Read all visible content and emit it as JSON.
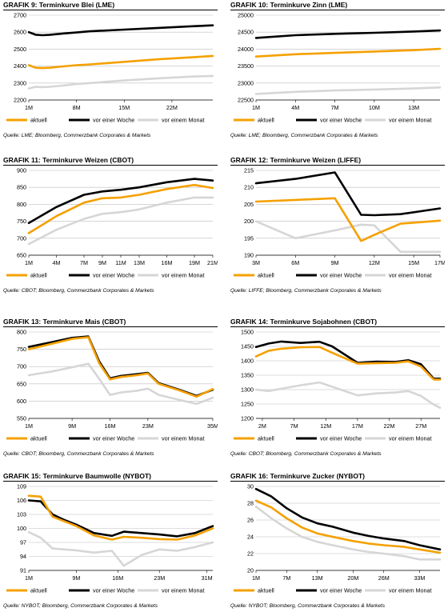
{
  "legend_labels": {
    "a": "aktuell",
    "w": "vor einer Woche",
    "m": "vor einem Monat"
  },
  "colors": {
    "aktuell": "#f5a000",
    "vor einer Woche": "#000000",
    "vor einem Monat": "#d6d6d6",
    "grid": "#bdbdbd"
  },
  "charts": [
    {
      "title": "GRAFIK 9: Terminkurve Blei (LME)",
      "source": "Quelle: LME; Bloomberg, Commerzbank Corporates & Markets"
    },
    {
      "title": "GRAFIK 10: Terminkurve Zinn (LME)",
      "source": "Quelle: LME; Bloomberg, Commerzbank Corporates & Markets"
    },
    {
      "title": "GRAFIK 11: Terminkurve Weizen (CBOT)",
      "source": "Quelle: CBOT; Bloomberg, Commerzbank Corporates & Markets"
    },
    {
      "title": "GRAFIK 12: Terminkurve Weizen (LIFFE)",
      "source": "Quelle: LIFFE; Bloomberg, Commerzbank Corporates & Markets"
    },
    {
      "title": "GRAFIK 13:  Terminkurve Mais (CBOT)",
      "source": "Quelle: CBOT; Bloomberg, Commerzbank Corporates & Markets"
    },
    {
      "title": "GRAFIK 14: Terminkurve Sojabohnen (CBOT)",
      "source": "Quelle: CBOT; Bloomberg, Commerzbank Corporates & Markets"
    },
    {
      "title": "GRAFIK 15: Terminkurve Baumwolle (NYBOT)",
      "source": "Quelle: NYBOT; Bloomberg, Commerzbank Corporates & Markets"
    },
    {
      "title": "GRAFIK 16: Terminkurve Zucker (NYBOT)",
      "source": "Quelle: NYBOT; Bloomberg, Commerzbank Corporates & Markets"
    }
  ],
  "chart_data": [
    {
      "type": "line",
      "xlim": [
        1,
        28
      ],
      "ylim": [
        2200,
        2700
      ],
      "yticks": [
        2200,
        2300,
        2400,
        2500,
        2600,
        2700
      ],
      "xticks": [
        1,
        8,
        15,
        22
      ],
      "xtick_labels": [
        "1M",
        "8M",
        "15M",
        "22M"
      ],
      "series": [
        {
          "name": "aktuell",
          "x": [
            1,
            2,
            3,
            4,
            6,
            8,
            10,
            15,
            20,
            25,
            28
          ],
          "y": [
            2405,
            2390,
            2388,
            2390,
            2398,
            2405,
            2410,
            2425,
            2440,
            2452,
            2460
          ]
        },
        {
          "name": "vor einer Woche",
          "x": [
            1,
            2,
            3,
            4,
            6,
            8,
            10,
            15,
            20,
            25,
            28
          ],
          "y": [
            2600,
            2585,
            2582,
            2584,
            2592,
            2598,
            2605,
            2615,
            2625,
            2635,
            2640
          ]
        },
        {
          "name": "vor einem Monat",
          "x": [
            1,
            2,
            3,
            4,
            6,
            8,
            10,
            15,
            20,
            25,
            28
          ],
          "y": [
            2268,
            2278,
            2276,
            2278,
            2285,
            2295,
            2300,
            2315,
            2328,
            2338,
            2342
          ]
        }
      ]
    },
    {
      "type": "line",
      "xlim": [
        1,
        15
      ],
      "ylim": [
        22500,
        25000
      ],
      "yticks": [
        22500,
        23000,
        23500,
        24000,
        24500,
        25000
      ],
      "xticks": [
        1,
        4,
        7,
        10,
        13
      ],
      "xtick_labels": [
        "1M",
        "4M",
        "7M",
        "10M",
        "13M"
      ],
      "series": [
        {
          "name": "aktuell",
          "x": [
            1,
            4,
            7,
            10,
            13,
            15
          ],
          "y": [
            23780,
            23850,
            23890,
            23930,
            23970,
            24010
          ]
        },
        {
          "name": "vor einer Woche",
          "x": [
            1,
            4,
            7,
            10,
            13,
            15
          ],
          "y": [
            24330,
            24410,
            24450,
            24480,
            24520,
            24550
          ]
        },
        {
          "name": "vor einem Monat",
          "x": [
            1,
            4,
            7,
            10,
            13,
            15
          ],
          "y": [
            22680,
            22740,
            22780,
            22810,
            22840,
            22870
          ]
        }
      ]
    },
    {
      "type": "line",
      "xlim": [
        1,
        21
      ],
      "ylim": [
        650,
        900
      ],
      "yticks": [
        650,
        700,
        750,
        800,
        850,
        900
      ],
      "xticks": [
        1,
        4,
        7,
        9,
        11,
        13,
        16,
        19,
        21
      ],
      "xtick_labels": [
        "1M",
        "4M",
        "7M",
        "9M",
        "11M",
        "13M",
        "16M",
        "19M",
        "21M"
      ],
      "series": [
        {
          "name": "aktuell",
          "x": [
            1,
            4,
            7,
            9,
            11,
            13,
            16,
            19,
            21
          ],
          "y": [
            715,
            765,
            805,
            818,
            820,
            828,
            845,
            857,
            848
          ]
        },
        {
          "name": "vor einer Woche",
          "x": [
            1,
            4,
            7,
            9,
            11,
            13,
            16,
            19,
            21
          ],
          "y": [
            745,
            792,
            828,
            838,
            843,
            850,
            865,
            875,
            870
          ]
        },
        {
          "name": "vor einem Monat",
          "x": [
            1,
            4,
            7,
            9,
            11,
            13,
            16,
            19,
            21
          ],
          "y": [
            683,
            725,
            757,
            772,
            777,
            785,
            805,
            820,
            820
          ]
        }
      ]
    },
    {
      "type": "line",
      "xlim": [
        3,
        17
      ],
      "ylim": [
        190,
        215
      ],
      "yticks": [
        190,
        195,
        200,
        205,
        210,
        215
      ],
      "xticks": [
        3,
        6,
        9,
        12,
        15,
        17
      ],
      "xtick_labels": [
        "3M",
        "6M",
        "9M",
        "12M",
        "15M",
        "17M"
      ],
      "series": [
        {
          "name": "aktuell",
          "x": [
            3,
            6,
            9,
            11,
            12,
            14,
            17
          ],
          "y": [
            205.8,
            206.3,
            206.8,
            194.2,
            196,
            199.3,
            200.2
          ]
        },
        {
          "name": "vor einer Woche",
          "x": [
            3,
            6,
            9,
            11,
            12,
            14,
            17
          ],
          "y": [
            211.2,
            212.5,
            214.4,
            201.9,
            201.8,
            202.1,
            203.8
          ]
        },
        {
          "name": "vor einem Monat",
          "x": [
            3,
            6,
            9,
            11,
            12,
            14,
            17
          ],
          "y": [
            200,
            195,
            197.3,
            199,
            198.8,
            191,
            191
          ]
        }
      ]
    },
    {
      "type": "line",
      "xlim": [
        1,
        35
      ],
      "ylim": [
        550,
        800
      ],
      "yticks": [
        550,
        600,
        650,
        700,
        750,
        800
      ],
      "xticks": [
        1,
        9,
        16,
        23,
        35
      ],
      "xtick_labels": [
        "1M",
        "9M",
        "16M",
        "23M",
        "35M"
      ],
      "series": [
        {
          "name": "aktuell",
          "x": [
            1,
            5,
            9,
            12,
            14,
            16,
            18,
            21,
            23,
            25,
            29,
            32,
            35
          ],
          "y": [
            750,
            765,
            780,
            785,
            710,
            663,
            670,
            675,
            680,
            650,
            630,
            613,
            635
          ]
        },
        {
          "name": "vor einer Woche",
          "x": [
            1,
            5,
            9,
            12,
            14,
            16,
            18,
            21,
            23,
            25,
            29,
            32,
            35
          ],
          "y": [
            757,
            770,
            783,
            787,
            715,
            666,
            673,
            678,
            682,
            652,
            632,
            615,
            633
          ]
        },
        {
          "name": "vor einem Monat",
          "x": [
            1,
            5,
            9,
            12,
            14,
            16,
            18,
            21,
            23,
            25,
            29,
            32,
            35
          ],
          "y": [
            675,
            685,
            698,
            708,
            665,
            618,
            625,
            630,
            636,
            618,
            603,
            592,
            610
          ]
        }
      ]
    },
    {
      "type": "line",
      "xlim": [
        1,
        30
      ],
      "ylim": [
        1200,
        1500
      ],
      "yticks": [
        1200,
        1250,
        1300,
        1350,
        1400,
        1450,
        1500
      ],
      "xticks": [
        2,
        7,
        12,
        17,
        22,
        27
      ],
      "xtick_labels": [
        "2M",
        "7M",
        "12M",
        "17M",
        "22M",
        "27M"
      ],
      "series": [
        {
          "name": "aktuell",
          "x": [
            1,
            3,
            5,
            8,
            11,
            13,
            17,
            20,
            23,
            25,
            27,
            29,
            30
          ],
          "y": [
            1415,
            1435,
            1442,
            1447,
            1448,
            1428,
            1390,
            1392,
            1393,
            1398,
            1380,
            1335,
            1335
          ]
        },
        {
          "name": "vor einer Woche",
          "x": [
            1,
            3,
            5,
            8,
            11,
            13,
            17,
            20,
            23,
            25,
            27,
            29,
            30
          ],
          "y": [
            1448,
            1460,
            1467,
            1462,
            1466,
            1450,
            1393,
            1397,
            1396,
            1402,
            1388,
            1338,
            1338
          ]
        },
        {
          "name": "vor einem Monat",
          "x": [
            1,
            3,
            5,
            8,
            11,
            13,
            17,
            20,
            23,
            25,
            27,
            29,
            30
          ],
          "y": [
            1300,
            1295,
            1303,
            1315,
            1325,
            1310,
            1280,
            1287,
            1290,
            1295,
            1278,
            1248,
            1237
          ]
        }
      ]
    },
    {
      "type": "line",
      "xlim": [
        1,
        32
      ],
      "ylim": [
        91,
        109
      ],
      "yticks": [
        91,
        94,
        97,
        100,
        103,
        106,
        109
      ],
      "xticks": [
        1,
        9,
        16,
        23,
        31
      ],
      "xtick_labels": [
        "1M",
        "9M",
        "16M",
        "23M",
        "31M"
      ],
      "series": [
        {
          "name": "aktuell",
          "x": [
            1,
            3,
            5,
            7,
            9,
            12,
            15,
            17,
            20,
            23,
            26,
            29,
            32
          ],
          "y": [
            107,
            106.8,
            102.5,
            101.5,
            100.5,
            98.5,
            97.6,
            98.2,
            98,
            97.7,
            97.6,
            98.5,
            100
          ]
        },
        {
          "name": "vor einer Woche",
          "x": [
            1,
            3,
            5,
            7,
            9,
            12,
            15,
            17,
            20,
            23,
            26,
            29,
            32
          ],
          "y": [
            106,
            105.8,
            103,
            101.8,
            100.8,
            99,
            98.4,
            99.3,
            99,
            98.7,
            98.3,
            99,
            100.5
          ]
        },
        {
          "name": "vor einem Monat",
          "x": [
            1,
            3,
            5,
            7,
            9,
            12,
            15,
            17,
            20,
            23,
            26,
            29,
            32
          ],
          "y": [
            99.2,
            98,
            95.7,
            95.5,
            95.3,
            94.8,
            95.2,
            92,
            94.3,
            95.5,
            95.2,
            96,
            97
          ]
        }
      ]
    },
    {
      "type": "line",
      "xlim": [
        1,
        37
      ],
      "ylim": [
        20,
        30
      ],
      "yticks": [
        20,
        22,
        24,
        26,
        28,
        30
      ],
      "xticks": [
        1,
        7,
        13,
        20,
        26,
        33
      ],
      "xtick_labels": [
        "1M",
        "7M",
        "13M",
        "20M",
        "26M",
        "33M"
      ],
      "series": [
        {
          "name": "aktuell",
          "x": [
            1,
            4,
            7,
            10,
            13,
            16,
            20,
            23,
            26,
            30,
            33,
            37
          ],
          "y": [
            28.3,
            27.5,
            26.2,
            25.1,
            24.4,
            24.0,
            23.5,
            23.2,
            23.0,
            22.8,
            22.5,
            22.1
          ]
        },
        {
          "name": "vor einer Woche",
          "x": [
            1,
            4,
            7,
            10,
            13,
            16,
            20,
            23,
            26,
            30,
            33,
            37
          ],
          "y": [
            29.7,
            28.8,
            27.4,
            26.3,
            25.6,
            25.2,
            24.5,
            24.1,
            23.8,
            23.5,
            23.0,
            22.5
          ]
        },
        {
          "name": "vor einem Monat",
          "x": [
            1,
            4,
            7,
            10,
            13,
            16,
            20,
            23,
            26,
            30,
            33,
            37
          ],
          "y": [
            27.6,
            26.2,
            25.0,
            24.0,
            23.4,
            23.0,
            22.5,
            22.2,
            22.0,
            21.7,
            21.3,
            21.3
          ]
        }
      ]
    }
  ]
}
